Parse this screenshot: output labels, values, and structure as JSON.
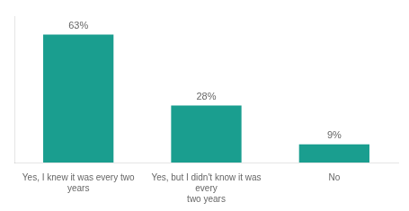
{
  "chart_data": {
    "type": "bar",
    "categories": [
      "Yes, I knew it was every two years",
      "Yes, but I didn't know it was every\ntwo years",
      "No"
    ],
    "values": [
      63,
      28,
      9
    ],
    "value_labels": [
      "63%",
      "28%",
      "9%"
    ],
    "color": "#1a9e8f",
    "ylim": [
      0,
      72
    ],
    "grid": false,
    "tick_labels": "x",
    "data_labels": true
  }
}
